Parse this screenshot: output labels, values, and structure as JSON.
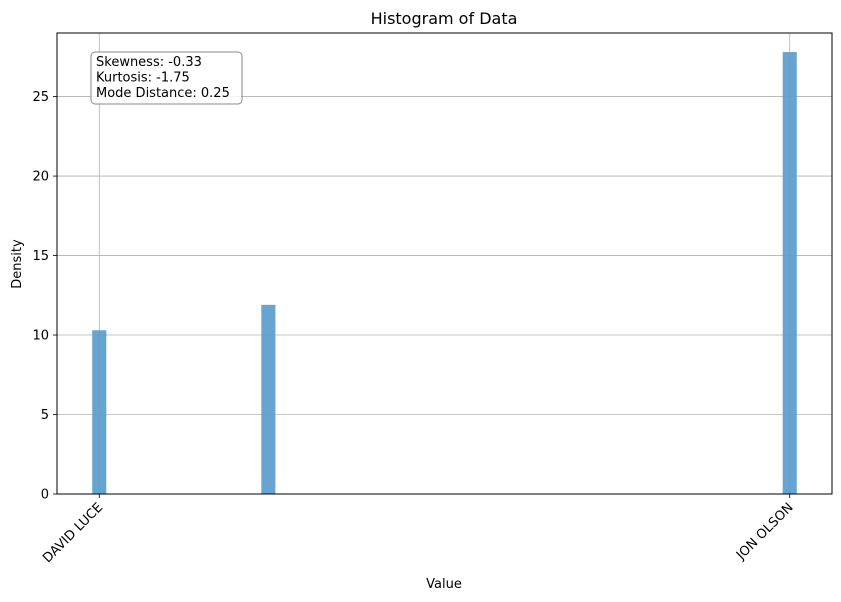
{
  "chart_data": {
    "type": "bar",
    "title": "Histogram of Data",
    "xlabel": "Value",
    "ylabel": "Density",
    "ylim": [
      0,
      29
    ],
    "yticks": [
      0,
      5,
      10,
      15,
      20,
      25
    ],
    "x_tick_labels": [
      "DAVID LUCE",
      "JON OLSON"
    ],
    "bins": [
      {
        "x": 0.0,
        "width": 0.02,
        "value": 10.3
      },
      {
        "x": 0.24,
        "width": 0.02,
        "value": 11.9
      },
      {
        "x": 0.98,
        "width": 0.02,
        "value": 27.8
      }
    ],
    "xlim": [
      -0.05,
      1.05
    ],
    "grid": true,
    "bar_color": "#5f9fcc",
    "annotations": [
      "Skewness: -0.33",
      "Kurtosis: -1.75",
      "Mode Distance: 0.25"
    ]
  }
}
